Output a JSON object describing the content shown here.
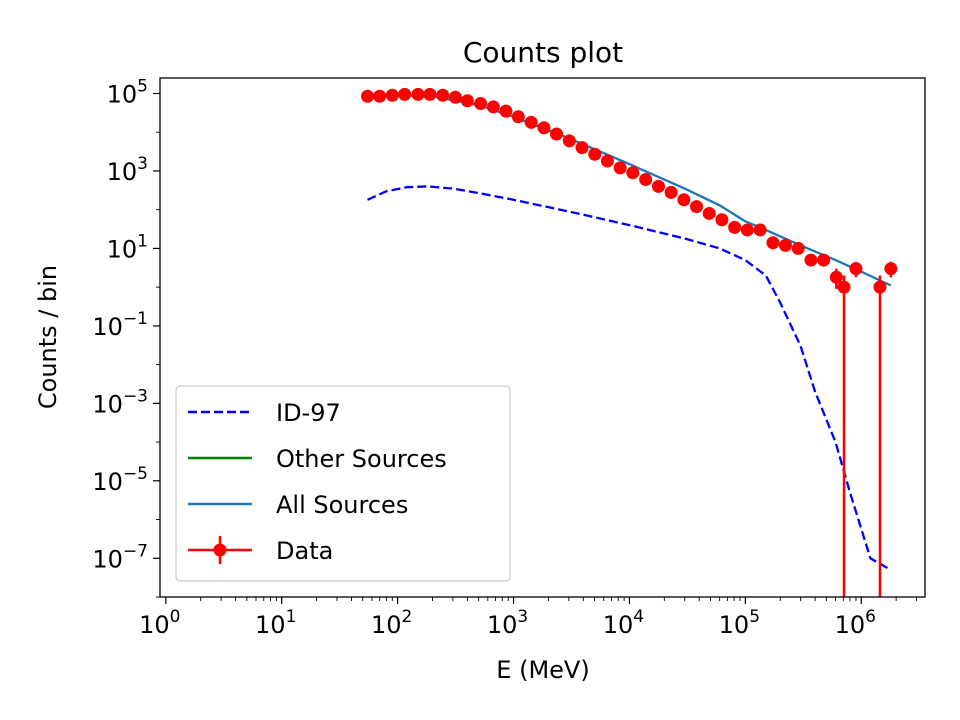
{
  "chart_data": {
    "type": "line",
    "title": "Counts plot",
    "xlabel": "E (MeV)",
    "ylabel": "Counts / bin",
    "xscale": "log",
    "yscale": "log",
    "xlim_log10": [
      -0.05,
      6.55
    ],
    "ylim_log10": [
      -8.0,
      5.4
    ],
    "x_ticks": [
      {
        "base": "10",
        "exp": "0",
        "log": 0
      },
      {
        "base": "10",
        "exp": "1",
        "log": 1
      },
      {
        "base": "10",
        "exp": "2",
        "log": 2
      },
      {
        "base": "10",
        "exp": "3",
        "log": 3
      },
      {
        "base": "10",
        "exp": "4",
        "log": 4
      },
      {
        "base": "10",
        "exp": "5",
        "log": 5
      },
      {
        "base": "10",
        "exp": "6",
        "log": 6
      }
    ],
    "y_ticks": [
      {
        "base": "10",
        "exp": "5",
        "log": 5
      },
      {
        "base": "10",
        "exp": "3",
        "log": 3
      },
      {
        "base": "10",
        "exp": "1",
        "log": 1
      },
      {
        "base": "10",
        "exp": "−1",
        "log": -1
      },
      {
        "base": "10",
        "exp": "−3",
        "log": -3
      },
      {
        "base": "10",
        "exp": "−5",
        "log": -5
      },
      {
        "base": "10",
        "exp": "−7",
        "log": -7
      }
    ],
    "legend_position": "lower-left",
    "series": [
      {
        "name": "ID-97",
        "style": "dashed",
        "color": "#0000ff",
        "x": [
          55,
          80,
          120,
          180,
          300,
          500,
          1000,
          3000,
          10000,
          30000,
          60000,
          100000,
          150000,
          200000,
          300000,
          400000,
          600000,
          800000,
          1200000,
          1800000
        ],
        "y": [
          180,
          300,
          380,
          400,
          350,
          270,
          180,
          90,
          40,
          18,
          10,
          5,
          2.0,
          0.4,
          0.03,
          0.002,
          0.0001,
          5e-06,
          1e-07,
          5e-08
        ]
      },
      {
        "name": "Other Sources",
        "style": "solid",
        "color": "#008000",
        "x": [],
        "y": []
      },
      {
        "name": "All Sources",
        "style": "solid",
        "color": "#1f77b4",
        "x": [
          55,
          100,
          200,
          500,
          1000,
          3000,
          10000,
          30000,
          60000,
          100000,
          150000,
          300000,
          600000,
          1000000,
          1800000
        ],
        "y": [
          85000,
          90000,
          85000,
          50000,
          25000,
          7000,
          1500,
          350,
          130,
          50,
          30,
          12,
          5,
          2.5,
          1.1
        ]
      },
      {
        "name": "Data",
        "style": "errorbar",
        "color": "#ff0000",
        "x": [
          55,
          70,
          90,
          115,
          150,
          190,
          245,
          315,
          400,
          520,
          670,
          860,
          1100,
          1420,
          1830,
          2350,
          3030,
          3900,
          5020,
          6460,
          8320,
          10700,
          13800,
          17800,
          22900,
          29500,
          37900,
          48800,
          62800,
          80900,
          104000,
          134000,
          173000,
          222000,
          286000,
          368000,
          474000,
          610000,
          710000,
          900000,
          1450000,
          1800000
        ],
        "y": [
          85000,
          85000,
          90000,
          95000,
          95000,
          95000,
          90000,
          80000,
          65000,
          55000,
          45000,
          35000,
          25000,
          18000,
          13000,
          9000,
          6000,
          4000,
          2700,
          1800,
          1200,
          900,
          600,
          400,
          280,
          180,
          120,
          80,
          55,
          35,
          30,
          30,
          14,
          12,
          10,
          5,
          5,
          1.8,
          1.0,
          3.0,
          1.0,
          3.0
        ],
        "y_low": [
          null,
          null,
          null,
          null,
          null,
          null,
          null,
          null,
          null,
          null,
          null,
          null,
          null,
          null,
          null,
          null,
          null,
          null,
          null,
          null,
          null,
          null,
          null,
          null,
          null,
          null,
          null,
          null,
          null,
          null,
          null,
          null,
          null,
          null,
          null,
          3.5,
          3.5,
          0.9,
          1e-08,
          1.8,
          1e-08,
          1.8
        ],
        "y_high": [
          null,
          null,
          null,
          null,
          null,
          null,
          null,
          null,
          null,
          null,
          null,
          null,
          null,
          null,
          null,
          null,
          null,
          null,
          null,
          null,
          null,
          null,
          null,
          null,
          null,
          null,
          null,
          null,
          null,
          null,
          null,
          null,
          null,
          null,
          null,
          7,
          7,
          3,
          2,
          4.5,
          2,
          4.5
        ]
      }
    ]
  }
}
